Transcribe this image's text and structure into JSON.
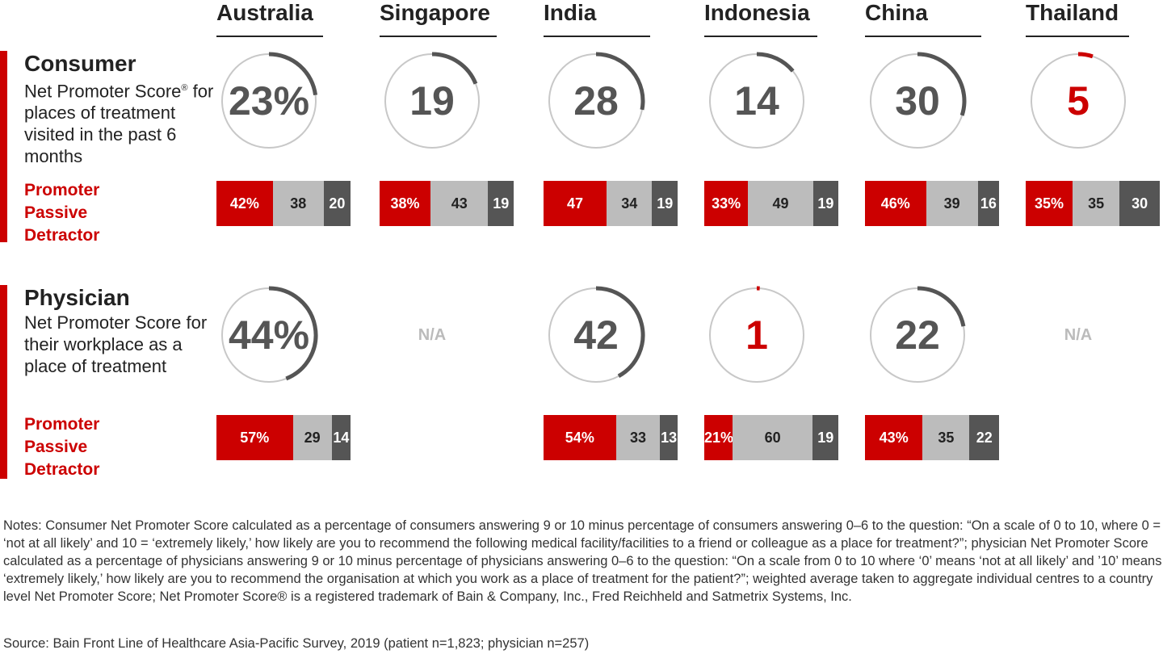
{
  "countries": [
    "Australia",
    "Singapore",
    "India",
    "Indonesia",
    "China",
    "Thailand"
  ],
  "sections": [
    {
      "title": "Consumer",
      "description": "Net Promoter Score® for places of treatment visited in the past 6 months",
      "legend": [
        "Promoter",
        "Passive",
        "Detractor"
      ]
    },
    {
      "title": "Physician",
      "description": "Net Promoter Score for their workplace as a place of treatment",
      "legend": [
        "Promoter",
        "Passive",
        "Detractor"
      ]
    }
  ],
  "chart_data": {
    "type": "bar",
    "categories": [
      "Australia",
      "Singapore",
      "India",
      "Indonesia",
      "China",
      "Thailand"
    ],
    "consumer": {
      "nps": [
        "23%",
        "19",
        "28",
        "14",
        "30",
        "5"
      ],
      "nps_values": [
        23,
        19,
        28,
        14,
        30,
        5
      ],
      "series": [
        {
          "name": "Promoter",
          "values": [
            42,
            38,
            47,
            33,
            46,
            35
          ],
          "labels": [
            "42%",
            "38%",
            "47",
            "33%",
            "46%",
            "35%"
          ]
        },
        {
          "name": "Passive",
          "values": [
            38,
            43,
            34,
            49,
            39,
            35
          ],
          "labels": [
            "38",
            "43",
            "34",
            "49",
            "39",
            "35"
          ]
        },
        {
          "name": "Detractor",
          "values": [
            20,
            19,
            19,
            19,
            16,
            30
          ],
          "labels": [
            "20",
            "19",
            "19",
            "19",
            "16",
            "30"
          ]
        }
      ]
    },
    "physician": {
      "nps": [
        "44%",
        "N/A",
        "42",
        "1",
        "22",
        "N/A"
      ],
      "nps_values": [
        44,
        null,
        42,
        1,
        22,
        null
      ],
      "series": [
        {
          "name": "Promoter",
          "values": [
            57,
            null,
            54,
            21,
            43,
            null
          ],
          "labels": [
            "57%",
            "",
            "54%",
            "21%",
            "43%",
            ""
          ]
        },
        {
          "name": "Passive",
          "values": [
            29,
            null,
            33,
            60,
            35,
            null
          ],
          "labels": [
            "29",
            "",
            "33",
            "60",
            "35",
            ""
          ]
        },
        {
          "name": "Detractor",
          "values": [
            14,
            null,
            13,
            19,
            22,
            null
          ],
          "labels": [
            "14",
            "",
            "13",
            "19",
            "22",
            ""
          ]
        }
      ]
    },
    "colors": {
      "promoter": "#cc0000",
      "passive": "#bcbcbc",
      "detractor": "#555555",
      "ring": "#c8c8c8",
      "arc": "#555555",
      "arc_low": "#cc0000"
    }
  },
  "notes": "Notes: Consumer Net Promoter Score calculated as a percentage of consumers answering 9 or 10 minus percentage of consumers answering 0–6 to the question: “On a scale of 0 to 10, where 0 = ‘not at all likely’ and 10 = ‘extremely likely,’ how likely are you to recommend the following medical facility/facilities to a friend or colleague as a place for treatment?”; physician Net Promoter Score calculated as a percentage of physicians answering 9 or 10 minus percentage of physicians answering 0–6 to the question: “On a scale from 0 to 10 where ‘0’ means ‘not at all likely’ and ’10’ means ‘extremely likely,’ how likely are you to recommend the organisation at which you work as a place of treatment for the patient?”; weighted average taken to aggregate individual centres to a country level Net Promoter Score; Net Promoter Score® is a registered trademark of Bain & Company, Inc., Fred Reichheld and Satmetrix Systems, Inc.",
  "source": "Source: Bain Front Line of Healthcare Asia-Pacific Survey, 2019 (patient n=1,823; physician n=257)"
}
